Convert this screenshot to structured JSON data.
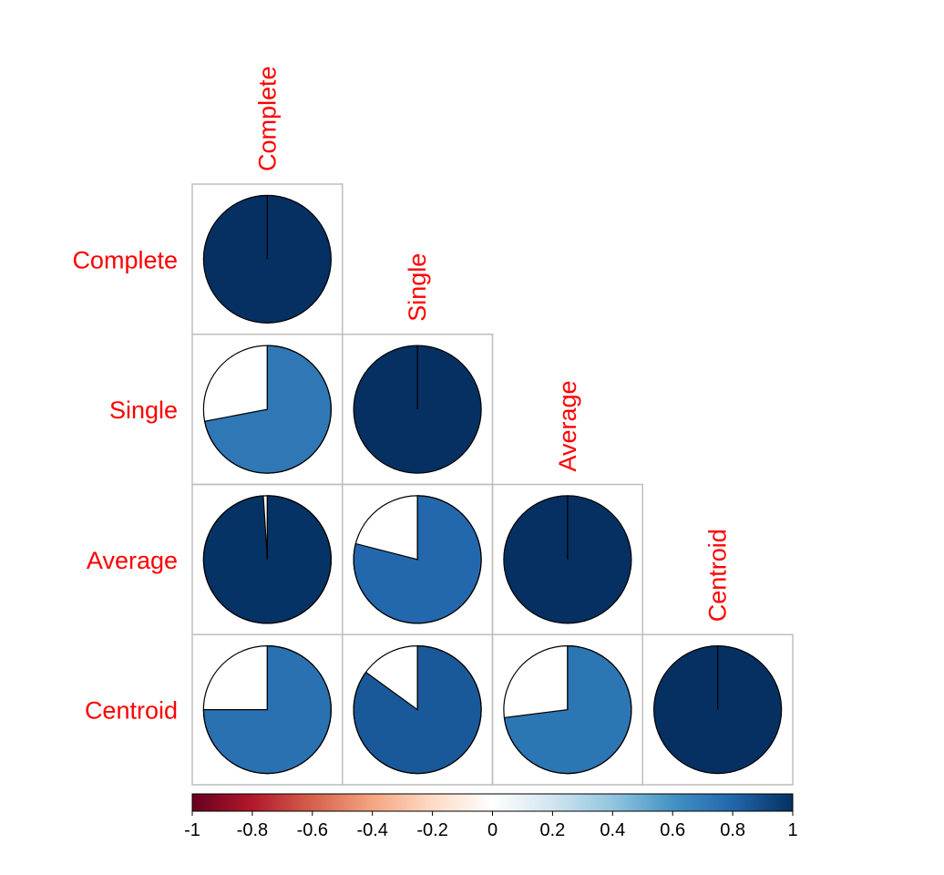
{
  "chart_data": {
    "type": "heatmap",
    "method": "pie",
    "matrix_shape": "lower-triangular",
    "variables": [
      "Complete",
      "Single",
      "Average",
      "Centroid"
    ],
    "values": [
      [
        1.0
      ],
      [
        0.72,
        1.0
      ],
      [
        0.99,
        0.79,
        1.0
      ],
      [
        0.75,
        0.85,
        0.73,
        1.0
      ]
    ],
    "label_color": "#ff0000",
    "colorbar": {
      "range": [
        -1,
        1
      ],
      "ticks": [
        "-1",
        "-0.8",
        "-0.6",
        "-0.4",
        "-0.2",
        "0",
        "0.2",
        "0.4",
        "0.6",
        "0.8",
        "1"
      ],
      "colors": [
        "#67001f",
        "#b2182b",
        "#d6604d",
        "#f4a582",
        "#fddbc7",
        "#ffffff",
        "#d1e5f0",
        "#92c5de",
        "#4393c3",
        "#2166ac",
        "#053061"
      ],
      "placement": "bottom"
    }
  }
}
